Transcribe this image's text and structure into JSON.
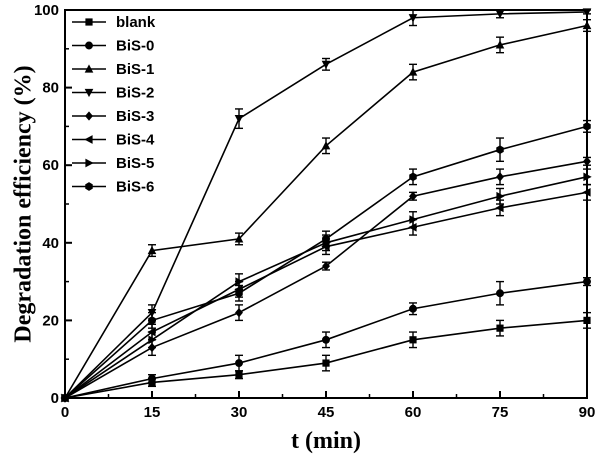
{
  "chart_data": {
    "type": "line",
    "xlabel": "t (min)",
    "ylabel": "Degradation efficiency (%)",
    "xlim": [
      0,
      90
    ],
    "ylim": [
      0,
      100
    ],
    "x_ticks": [
      0,
      15,
      30,
      45,
      60,
      75,
      90
    ],
    "y_ticks": [
      0,
      20,
      40,
      60,
      80,
      100
    ],
    "grid": false,
    "legend_position": "top-left",
    "x": [
      0,
      15,
      30,
      45,
      60,
      75,
      90
    ],
    "series": [
      {
        "name": "blank",
        "marker": "square",
        "values": [
          0,
          4,
          6,
          9,
          15,
          18,
          20
        ],
        "errors": [
          0,
          1,
          1,
          2,
          2,
          2,
          2
        ]
      },
      {
        "name": "BiS-0",
        "marker": "circle",
        "values": [
          0,
          5,
          9,
          15,
          23,
          27,
          30
        ],
        "errors": [
          0,
          1,
          2,
          2,
          1.5,
          3,
          1
        ]
      },
      {
        "name": "BiS-1",
        "marker": "triangle-up",
        "values": [
          0,
          38,
          41,
          65,
          84,
          91,
          96
        ],
        "errors": [
          0,
          1.5,
          1.5,
          2,
          2,
          2,
          1.5
        ]
      },
      {
        "name": "BiS-2",
        "marker": "triangle-down",
        "values": [
          0,
          22,
          72,
          86,
          98,
          99,
          99.5
        ],
        "errors": [
          0,
          2,
          2.5,
          1.5,
          2,
          1,
          0.5
        ]
      },
      {
        "name": "BiS-3",
        "marker": "diamond",
        "values": [
          0,
          13,
          22,
          34,
          52,
          57,
          61
        ],
        "errors": [
          0,
          2,
          2,
          1,
          1,
          2,
          1
        ]
      },
      {
        "name": "BiS-4",
        "marker": "triangle-left",
        "values": [
          0,
          17,
          28,
          39,
          44,
          49,
          53
        ],
        "errors": [
          0,
          2,
          2,
          2,
          2,
          2,
          2
        ]
      },
      {
        "name": "BiS-5",
        "marker": "triangle-right",
        "values": [
          0,
          15,
          30,
          40,
          46,
          52,
          57
        ],
        "errors": [
          0,
          2,
          2,
          2,
          2,
          2,
          2
        ]
      },
      {
        "name": "BiS-6",
        "marker": "hexagon",
        "values": [
          0,
          20,
          27,
          41,
          57,
          64,
          70
        ],
        "errors": [
          0,
          2,
          2,
          2,
          2,
          3,
          1.5
        ]
      }
    ]
  }
}
